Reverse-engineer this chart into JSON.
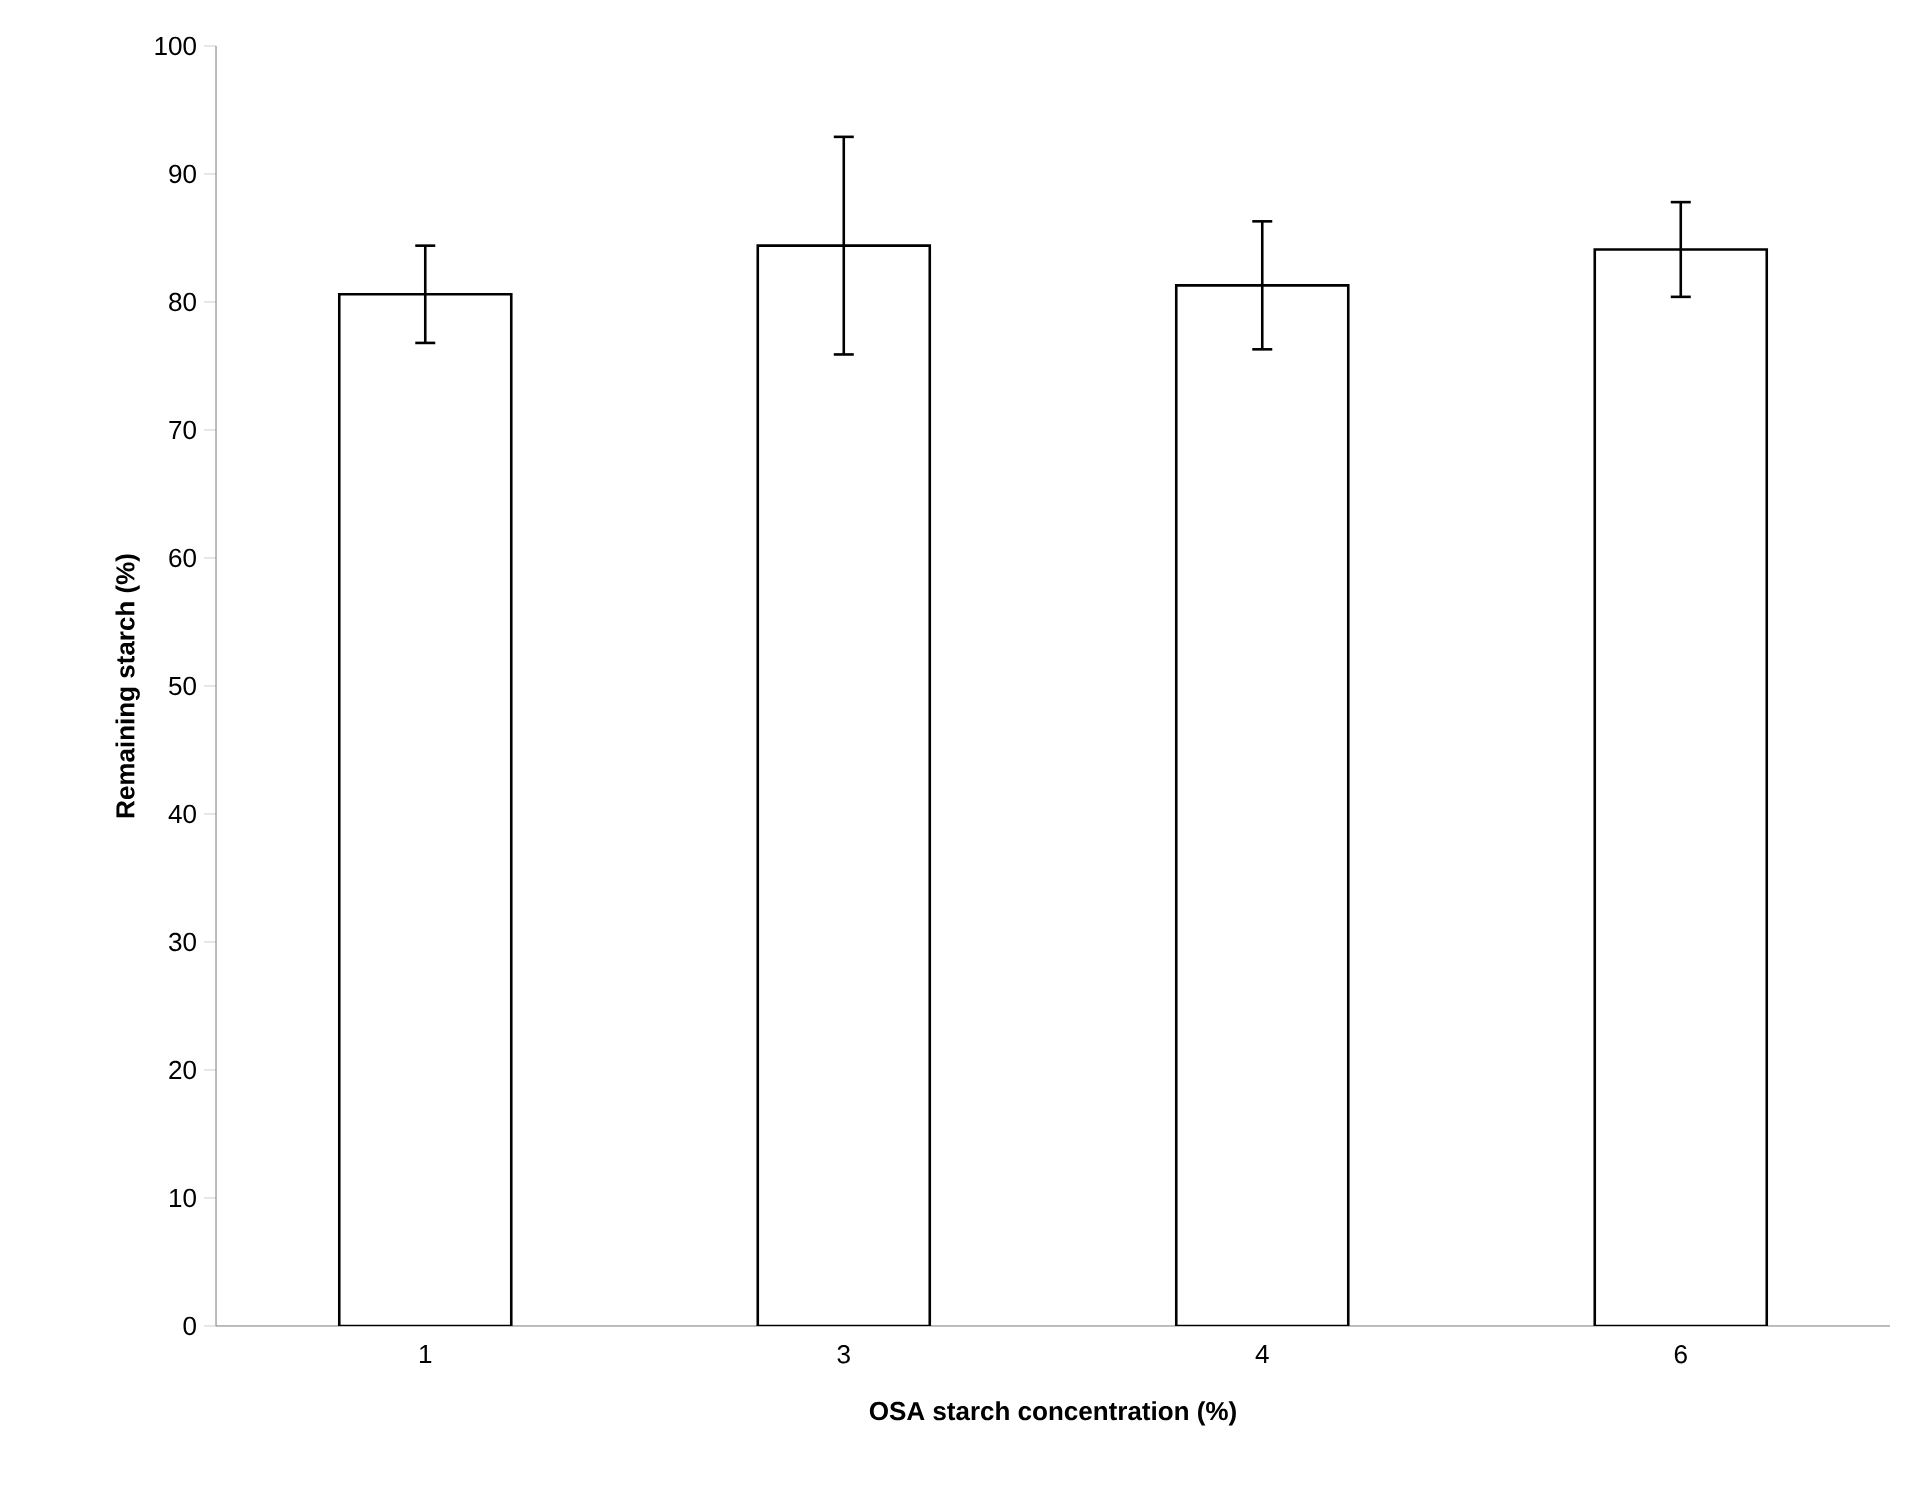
{
  "chart_data": {
    "type": "bar",
    "xlabel": "OSA starch concentration (%)",
    "ylabel": "Remaining starch (%)",
    "categories": [
      "1",
      "3",
      "4",
      "6"
    ],
    "values": [
      80.6,
      84.4,
      81.3,
      84.1
    ],
    "errors": [
      3.8,
      8.5,
      5.0,
      3.7
    ],
    "color": "#ffffff",
    "ylim": [
      0,
      100
    ],
    "yticks": [
      0,
      10,
      20,
      30,
      40,
      50,
      60,
      70,
      80,
      90,
      100
    ],
    "grid": false
  }
}
